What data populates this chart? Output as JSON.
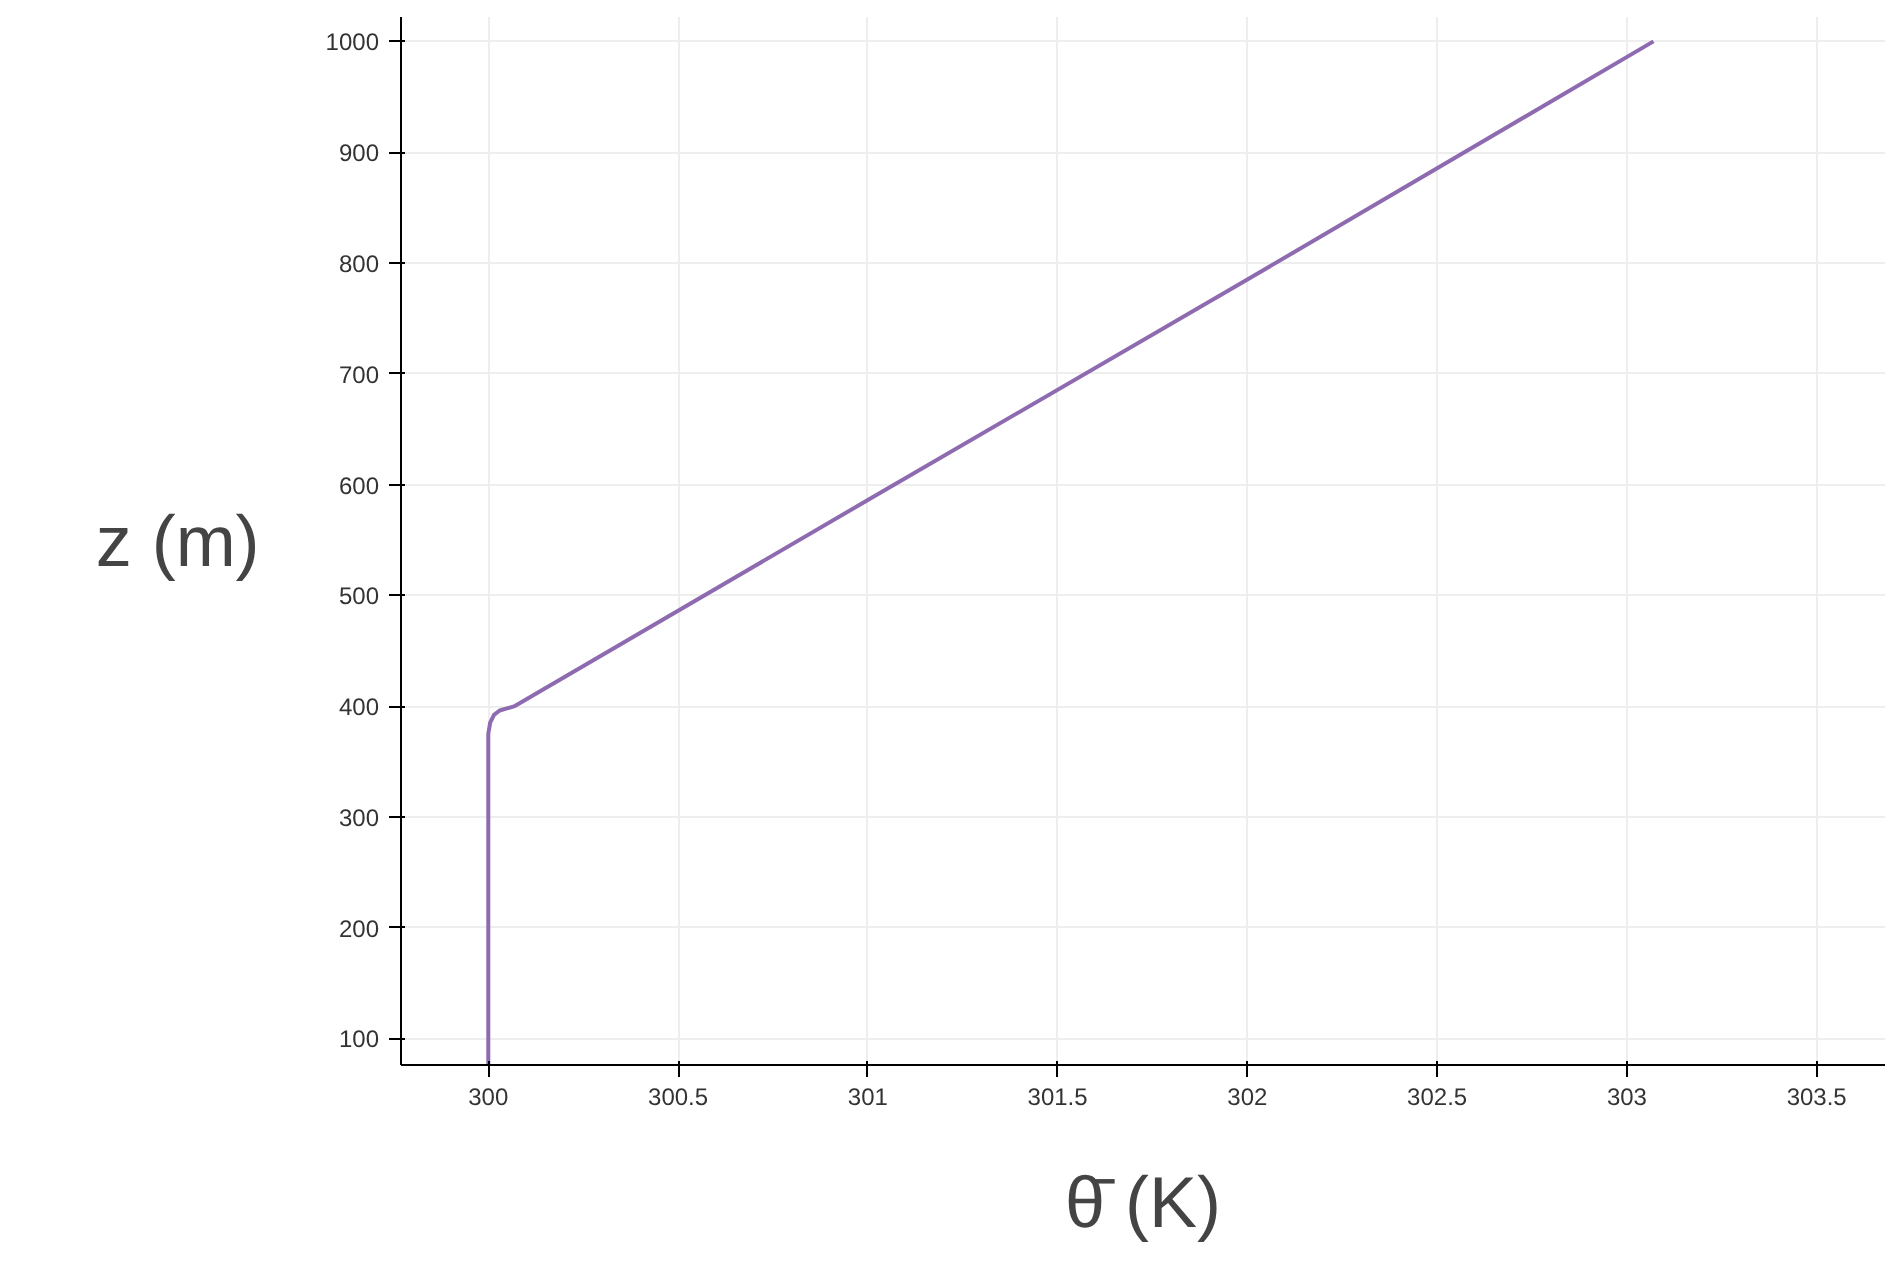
{
  "chart_data": {
    "type": "line",
    "xlabel": "θ̄ (K)",
    "ylabel": "z (m)",
    "series": [
      {
        "color": "#8e6bb0",
        "x": [
          300,
          300,
          300,
          300.005,
          300.015,
          300.03,
          300.07,
          301.0,
          302.0,
          303.07
        ],
        "values": [
          76,
          300,
          375,
          385,
          392,
          396,
          400,
          586,
          785,
          1000
        ]
      }
    ],
    "xlim": [
      299.77,
      303.68
    ],
    "ylim": [
      76,
      1022
    ],
    "xticks": [
      300,
      300.5,
      301,
      301.5,
      302,
      302.5,
      303,
      303.5
    ],
    "yticks": [
      100,
      200,
      300,
      400,
      500,
      600,
      700,
      800,
      900,
      1000
    ],
    "grid": true,
    "marker": "none",
    "line_style": "solid"
  }
}
